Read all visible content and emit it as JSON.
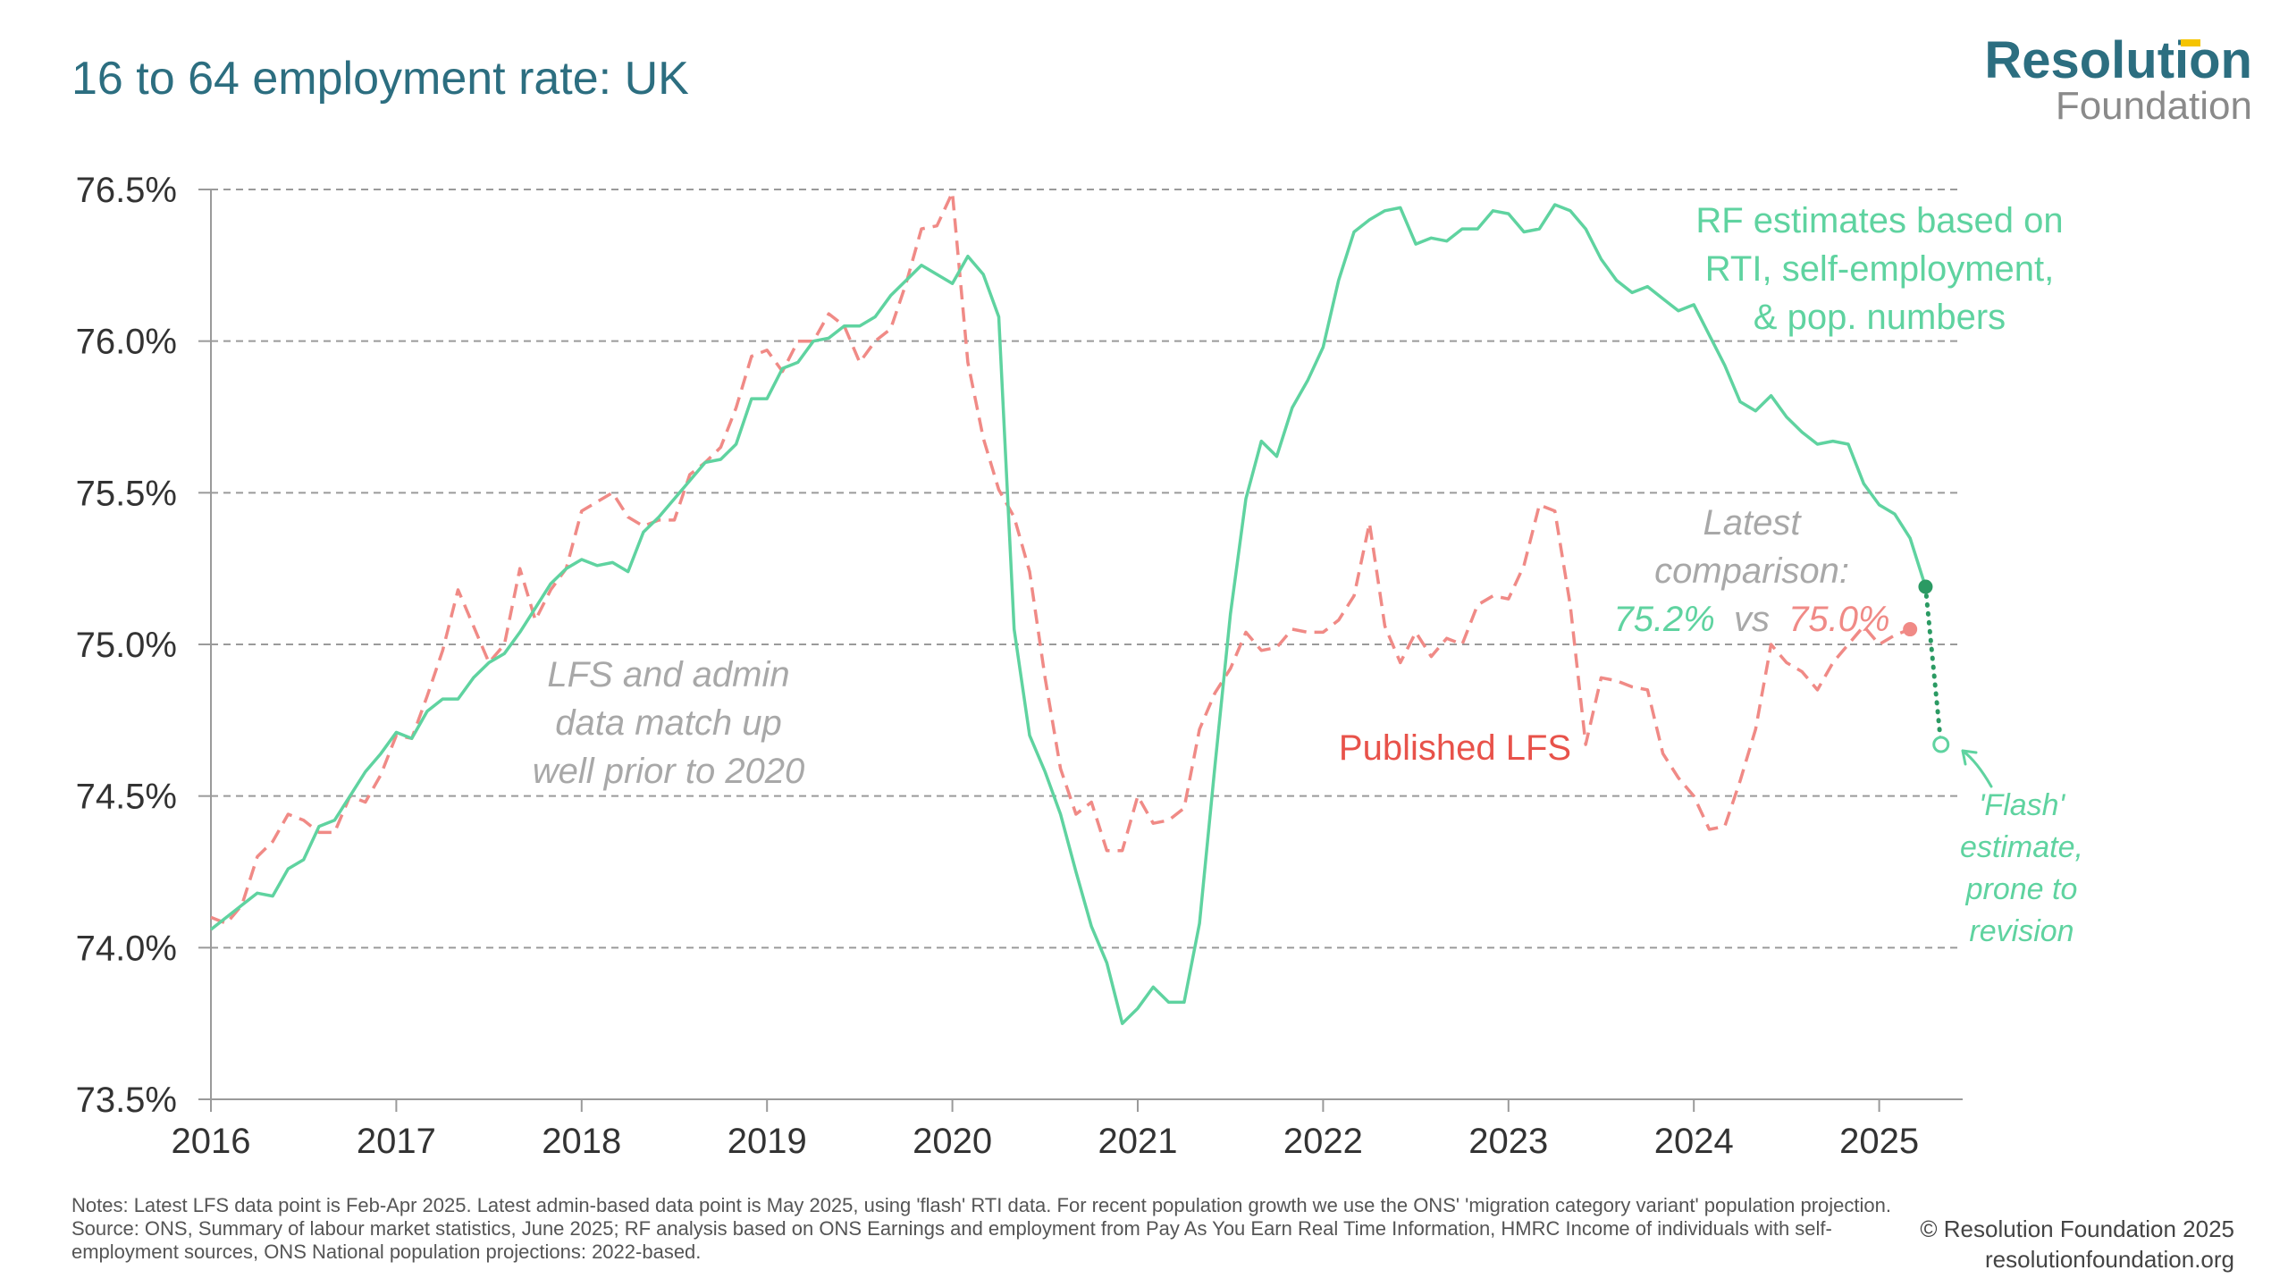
{
  "title": "16 to 64 employment rate: UK",
  "logo": {
    "top": "Resolution",
    "bottom": "Foundation"
  },
  "colors": {
    "rf": "#5fd3a0",
    "lfs": "#f08a86",
    "grey_text": "#a8a8a8",
    "rf_dark": "#2b9a63",
    "title": "#2c6e80"
  },
  "chart_data": {
    "type": "line",
    "x_type": "date",
    "xlim": [
      "2016-01",
      "2025-07"
    ],
    "ylim": [
      73.5,
      76.5
    ],
    "y_ticks": [
      "76.5%",
      "76.0%",
      "75.5%",
      "75.0%",
      "74.5%",
      "74.0%",
      "73.5%"
    ],
    "y_tick_values": [
      76.5,
      76.0,
      75.5,
      75.0,
      74.5,
      74.0,
      73.5
    ],
    "x_ticks": [
      "2016",
      "2017",
      "2018",
      "2019",
      "2020",
      "2021",
      "2022",
      "2023",
      "2024",
      "2025"
    ],
    "grid": "horizontal dashed",
    "series": [
      {
        "name": "RF estimates based on RTI, self-employment, & pop. numbers",
        "style": "solid",
        "color": "#5fd3a0",
        "points": [
          [
            "2016-01",
            74.06
          ],
          [
            "2016-02",
            74.1
          ],
          [
            "2016-03",
            74.14
          ],
          [
            "2016-04",
            74.18
          ],
          [
            "2016-05",
            74.17
          ],
          [
            "2016-06",
            74.26
          ],
          [
            "2016-07",
            74.29
          ],
          [
            "2016-08",
            74.4
          ],
          [
            "2016-09",
            74.42
          ],
          [
            "2016-10",
            74.5
          ],
          [
            "2016-11",
            74.58
          ],
          [
            "2016-12",
            74.64
          ],
          [
            "2017-01",
            74.71
          ],
          [
            "2017-02",
            74.69
          ],
          [
            "2017-03",
            74.78
          ],
          [
            "2017-04",
            74.82
          ],
          [
            "2017-05",
            74.82
          ],
          [
            "2017-06",
            74.89
          ],
          [
            "2017-07",
            74.94
          ],
          [
            "2017-08",
            74.97
          ],
          [
            "2017-09",
            75.04
          ],
          [
            "2017-10",
            75.12
          ],
          [
            "2017-11",
            75.2
          ],
          [
            "2017-12",
            75.25
          ],
          [
            "2018-01",
            75.28
          ],
          [
            "2018-02",
            75.26
          ],
          [
            "2018-03",
            75.27
          ],
          [
            "2018-04",
            75.24
          ],
          [
            "2018-05",
            75.37
          ],
          [
            "2018-06",
            75.42
          ],
          [
            "2018-07",
            75.48
          ],
          [
            "2018-08",
            75.54
          ],
          [
            "2018-09",
            75.6
          ],
          [
            "2018-10",
            75.61
          ],
          [
            "2018-11",
            75.66
          ],
          [
            "2018-12",
            75.81
          ],
          [
            "2019-01",
            75.81
          ],
          [
            "2019-02",
            75.91
          ],
          [
            "2019-03",
            75.93
          ],
          [
            "2019-04",
            76.0
          ],
          [
            "2019-05",
            76.01
          ],
          [
            "2019-06",
            76.05
          ],
          [
            "2019-07",
            76.05
          ],
          [
            "2019-08",
            76.08
          ],
          [
            "2019-09",
            76.15
          ],
          [
            "2019-10",
            76.2
          ],
          [
            "2019-11",
            76.25
          ],
          [
            "2019-12",
            76.22
          ],
          [
            "2020-01",
            76.19
          ],
          [
            "2020-02",
            76.28
          ],
          [
            "2020-03",
            76.22
          ],
          [
            "2020-04",
            76.08
          ],
          [
            "2020-05",
            75.05
          ],
          [
            "2020-06",
            74.7
          ],
          [
            "2020-07",
            74.58
          ],
          [
            "2020-08",
            74.44
          ],
          [
            "2020-09",
            74.25
          ],
          [
            "2020-10",
            74.07
          ],
          [
            "2020-11",
            73.95
          ],
          [
            "2020-12",
            73.75
          ],
          [
            "2021-01",
            73.8
          ],
          [
            "2021-02",
            73.87
          ],
          [
            "2021-03",
            73.82
          ],
          [
            "2021-04",
            73.82
          ],
          [
            "2021-05",
            74.08
          ],
          [
            "2021-06",
            74.6
          ],
          [
            "2021-07",
            75.1
          ],
          [
            "2021-08",
            75.48
          ],
          [
            "2021-09",
            75.67
          ],
          [
            "2021-10",
            75.62
          ],
          [
            "2021-11",
            75.78
          ],
          [
            "2021-12",
            75.87
          ],
          [
            "2022-01",
            75.98
          ],
          [
            "2022-02",
            76.2
          ],
          [
            "2022-03",
            76.36
          ],
          [
            "2022-04",
            76.4
          ],
          [
            "2022-05",
            76.43
          ],
          [
            "2022-06",
            76.44
          ],
          [
            "2022-07",
            76.32
          ],
          [
            "2022-08",
            76.34
          ],
          [
            "2022-09",
            76.33
          ],
          [
            "2022-10",
            76.37
          ],
          [
            "2022-11",
            76.37
          ],
          [
            "2022-12",
            76.43
          ],
          [
            "2023-01",
            76.42
          ],
          [
            "2023-02",
            76.36
          ],
          [
            "2023-03",
            76.37
          ],
          [
            "2023-04",
            76.45
          ],
          [
            "2023-05",
            76.43
          ],
          [
            "2023-06",
            76.37
          ],
          [
            "2023-07",
            76.27
          ],
          [
            "2023-08",
            76.2
          ],
          [
            "2023-09",
            76.16
          ],
          [
            "2023-10",
            76.18
          ],
          [
            "2023-11",
            76.14
          ],
          [
            "2023-12",
            76.1
          ],
          [
            "2024-01",
            76.12
          ],
          [
            "2024-02",
            76.02
          ],
          [
            "2024-03",
            75.92
          ],
          [
            "2024-04",
            75.8
          ],
          [
            "2024-05",
            75.77
          ],
          [
            "2024-06",
            75.82
          ],
          [
            "2024-07",
            75.75
          ],
          [
            "2024-08",
            75.7
          ],
          [
            "2024-09",
            75.66
          ],
          [
            "2024-10",
            75.67
          ],
          [
            "2024-11",
            75.66
          ],
          [
            "2024-12",
            75.53
          ],
          [
            "2025-01",
            75.46
          ],
          [
            "2025-02",
            75.43
          ],
          [
            "2025-03",
            75.35
          ],
          [
            "2025-04",
            75.19
          ]
        ]
      },
      {
        "name": "Published LFS",
        "style": "dashed",
        "color": "#f08a86",
        "points": [
          [
            "2016-01",
            74.1
          ],
          [
            "2016-02",
            74.08
          ],
          [
            "2016-03",
            74.14
          ],
          [
            "2016-04",
            74.3
          ],
          [
            "2016-05",
            74.35
          ],
          [
            "2016-06",
            74.44
          ],
          [
            "2016-07",
            74.42
          ],
          [
            "2016-08",
            74.38
          ],
          [
            "2016-09",
            74.38
          ],
          [
            "2016-10",
            74.5
          ],
          [
            "2016-11",
            74.48
          ],
          [
            "2016-12",
            74.57
          ],
          [
            "2017-01",
            74.7
          ],
          [
            "2017-02",
            74.69
          ],
          [
            "2017-03",
            74.83
          ],
          [
            "2017-04",
            74.98
          ],
          [
            "2017-05",
            75.18
          ],
          [
            "2017-06",
            75.06
          ],
          [
            "2017-07",
            74.94
          ],
          [
            "2017-08",
            75.0
          ],
          [
            "2017-09",
            75.25
          ],
          [
            "2017-10",
            75.08
          ],
          [
            "2017-11",
            75.18
          ],
          [
            "2017-12",
            75.25
          ],
          [
            "2018-01",
            75.44
          ],
          [
            "2018-02",
            75.47
          ],
          [
            "2018-03",
            75.5
          ],
          [
            "2018-04",
            75.42
          ],
          [
            "2018-05",
            75.39
          ],
          [
            "2018-06",
            75.41
          ],
          [
            "2018-07",
            75.41
          ],
          [
            "2018-08",
            75.56
          ],
          [
            "2018-09",
            75.6
          ],
          [
            "2018-10",
            75.65
          ],
          [
            "2018-11",
            75.78
          ],
          [
            "2018-12",
            75.95
          ],
          [
            "2019-01",
            75.97
          ],
          [
            "2019-02",
            75.9
          ],
          [
            "2019-03",
            76.0
          ],
          [
            "2019-04",
            76.0
          ],
          [
            "2019-05",
            76.09
          ],
          [
            "2019-06",
            76.05
          ],
          [
            "2019-07",
            75.93
          ],
          [
            "2019-08",
            76.0
          ],
          [
            "2019-09",
            76.04
          ],
          [
            "2019-10",
            76.19
          ],
          [
            "2019-11",
            76.37
          ],
          [
            "2019-12",
            76.38
          ],
          [
            "2020-01",
            76.49
          ],
          [
            "2020-02",
            75.93
          ],
          [
            "2020-03",
            75.68
          ],
          [
            "2020-04",
            75.51
          ],
          [
            "2020-05",
            75.42
          ],
          [
            "2020-06",
            75.24
          ],
          [
            "2020-07",
            74.89
          ],
          [
            "2020-08",
            74.59
          ],
          [
            "2020-09",
            74.44
          ],
          [
            "2020-10",
            74.48
          ],
          [
            "2020-11",
            74.32
          ],
          [
            "2020-12",
            74.32
          ],
          [
            "2021-01",
            74.5
          ],
          [
            "2021-02",
            74.41
          ],
          [
            "2021-03",
            74.42
          ],
          [
            "2021-04",
            74.46
          ],
          [
            "2021-05",
            74.72
          ],
          [
            "2021-06",
            74.84
          ],
          [
            "2021-07",
            74.92
          ],
          [
            "2021-08",
            75.04
          ],
          [
            "2021-09",
            74.98
          ],
          [
            "2021-10",
            74.99
          ],
          [
            "2021-11",
            75.05
          ],
          [
            "2021-12",
            75.04
          ],
          [
            "2022-01",
            75.04
          ],
          [
            "2022-02",
            75.08
          ],
          [
            "2022-03",
            75.16
          ],
          [
            "2022-04",
            75.4
          ],
          [
            "2022-05",
            75.06
          ],
          [
            "2022-06",
            74.94
          ],
          [
            "2022-07",
            75.04
          ],
          [
            "2022-08",
            74.96
          ],
          [
            "2022-09",
            75.02
          ],
          [
            "2022-10",
            75.0
          ],
          [
            "2022-11",
            75.13
          ],
          [
            "2022-12",
            75.16
          ],
          [
            "2023-01",
            75.15
          ],
          [
            "2023-02",
            75.26
          ],
          [
            "2023-03",
            75.46
          ],
          [
            "2023-04",
            75.44
          ],
          [
            "2023-05",
            75.13
          ],
          [
            "2023-06",
            74.67
          ],
          [
            "2023-07",
            74.89
          ],
          [
            "2023-08",
            74.88
          ],
          [
            "2023-09",
            74.86
          ],
          [
            "2023-10",
            74.85
          ],
          [
            "2023-11",
            74.64
          ],
          [
            "2023-12",
            74.56
          ],
          [
            "2024-01",
            74.5
          ],
          [
            "2024-02",
            74.39
          ],
          [
            "2024-03",
            74.4
          ],
          [
            "2024-04",
            74.55
          ],
          [
            "2024-05",
            74.72
          ],
          [
            "2024-06",
            75.0
          ],
          [
            "2024-07",
            74.94
          ],
          [
            "2024-08",
            74.91
          ],
          [
            "2024-09",
            74.85
          ],
          [
            "2024-10",
            74.94
          ],
          [
            "2024-11",
            75.0
          ],
          [
            "2024-12",
            75.06
          ],
          [
            "2025-01",
            75.0
          ],
          [
            "2025-02",
            75.03
          ],
          [
            "2025-03",
            75.05
          ]
        ]
      },
      {
        "name": "'Flash' estimate",
        "style": "dotted",
        "color": "#2b9a63",
        "points": [
          [
            "2025-04",
            75.19
          ],
          [
            "2025-05",
            74.67
          ]
        ]
      }
    ],
    "annotations": {
      "rf_label": [
        "RF estimates based on",
        "RTI, self-employment,",
        "& pop. numbers"
      ],
      "lfs_label": "Published LFS",
      "match_note": [
        "LFS and admin",
        "data match up",
        "well prior to 2020"
      ],
      "latest": [
        "Latest",
        "comparison:"
      ],
      "latest_rf_value": "75.2%",
      "latest_vs": "vs",
      "latest_lfs_value": "75.0%",
      "flash": [
        "'Flash'",
        "estimate,",
        "prone to",
        "revision"
      ]
    }
  },
  "notes": {
    "line1": "Notes: Latest LFS data point is Feb-Apr 2025. Latest admin-based data point is May 2025, using 'flash' RTI data. For recent population growth we use the ONS' 'migration category variant' population projection.",
    "line2": "Source: ONS, Summary of labour market statistics, June 2025; RF analysis based on ONS Earnings and employment from Pay As You Earn Real Time Information, HMRC Income of individuals with self-employment sources, ONS National population projections: 2022-based."
  },
  "copyright": {
    "line1": "© Resolution Foundation 2025",
    "line2": "resolutionfoundation.org"
  }
}
